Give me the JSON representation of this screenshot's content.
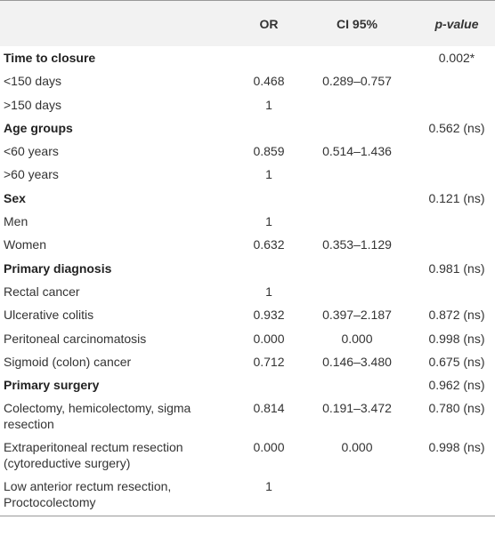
{
  "header": {
    "c1": "",
    "or": "OR",
    "ci": "CI 95%",
    "pvalue": "p-value"
  },
  "rows": [
    {
      "label": "Time to closure",
      "or": "",
      "ci": "",
      "p": "0.002*",
      "head": true
    },
    {
      "label": "<150 days",
      "or": "0.468",
      "ci": "0.289–0.757",
      "p": ""
    },
    {
      "label": ">150 days",
      "or": "1",
      "ci": "",
      "p": ""
    },
    {
      "label": "Age groups",
      "or": "",
      "ci": "",
      "p": "0.562 (ns)",
      "head": true
    },
    {
      "label": "<60 years",
      "or": "0.859",
      "ci": "0.514–1.436",
      "p": ""
    },
    {
      "label": ">60 years",
      "or": "1",
      "ci": "",
      "p": ""
    },
    {
      "label": "Sex",
      "or": "",
      "ci": "",
      "p": "0.121 (ns)",
      "head": true
    },
    {
      "label": "Men",
      "or": "1",
      "ci": "",
      "p": ""
    },
    {
      "label": "Women",
      "or": "0.632",
      "ci": "0.353–1.129",
      "p": ""
    },
    {
      "label": "Primary diagnosis",
      "or": "",
      "ci": "",
      "p": "0.981 (ns)",
      "head": true
    },
    {
      "label": "Rectal cancer",
      "or": "1",
      "ci": "",
      "p": ""
    },
    {
      "label": "Ulcerative colitis",
      "or": "0.932",
      "ci": "0.397–2.187",
      "p": "0.872 (ns)"
    },
    {
      "label": "Peritoneal carcinomatosis",
      "or": "0.000",
      "ci": "0.000",
      "p": "0.998 (ns)"
    },
    {
      "label": "Sigmoid (colon) cancer",
      "or": "0.712",
      "ci": "0.146–3.480",
      "p": "0.675 (ns)"
    },
    {
      "label": "Primary surgery",
      "or": "",
      "ci": "",
      "p": "0.962 (ns)",
      "head": true
    },
    {
      "label": "Colectomy, hemicolectomy, sigma resection",
      "or": "0.814",
      "ci": "0.191–3.472",
      "p": "0.780 (ns)",
      "tall": true
    },
    {
      "label": "Extraperitoneal rectum resection (cytoreductive surgery)",
      "or": "0.000",
      "ci": "0.000",
      "p": "0.998 (ns)",
      "tall": true
    },
    {
      "label": "Low anterior rectum resection, Proctocolectomy",
      "or": "1",
      "ci": "",
      "p": "",
      "tall": true
    }
  ]
}
